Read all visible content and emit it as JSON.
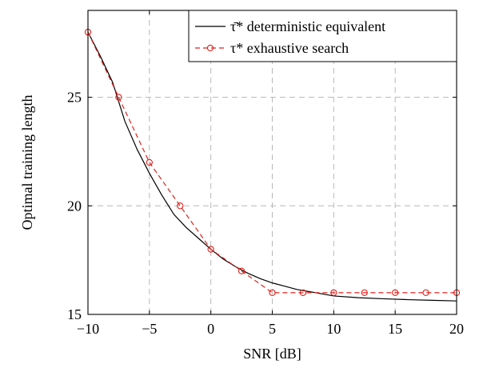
{
  "chart_data": {
    "type": "line",
    "xlabel": "SNR [dB]",
    "ylabel": "Optimal training length",
    "xlim": [
      -10,
      20
    ],
    "ylim": [
      15,
      29
    ],
    "x_ticks": [
      -10,
      -5,
      0,
      5,
      10,
      15,
      20
    ],
    "y_ticks": [
      15,
      20,
      25
    ],
    "grid": true,
    "legend_position": "top-right",
    "series": [
      {
        "name": "τ̄* deterministic equivalent",
        "color": "#000000",
        "style": "solid",
        "marker": "none",
        "x": [
          -10,
          -9,
          -8,
          -7,
          -6,
          -5,
          -4,
          -3,
          -2,
          -1,
          0,
          1,
          2,
          3,
          4,
          5,
          6,
          7,
          8,
          9,
          10,
          12,
          14,
          16,
          18,
          20
        ],
        "y": [
          28,
          26.9,
          25.7,
          23.9,
          22.6,
          21.5,
          20.5,
          19.6,
          19.0,
          18.5,
          18.0,
          17.55,
          17.2,
          16.9,
          16.65,
          16.45,
          16.3,
          16.15,
          16.05,
          15.95,
          15.85,
          15.77,
          15.72,
          15.68,
          15.65,
          15.62
        ]
      },
      {
        "name": "τ* exhaustive search",
        "color": "#e0201b",
        "style": "dashed",
        "marker": "circle",
        "x": [
          -10,
          -7.5,
          -5,
          -2.5,
          0,
          2.5,
          5,
          7.5,
          10,
          12.5,
          15,
          17.5,
          20
        ],
        "y": [
          28,
          25,
          22,
          20,
          18,
          17,
          16,
          16,
          16,
          16,
          16,
          16,
          16
        ]
      }
    ]
  }
}
